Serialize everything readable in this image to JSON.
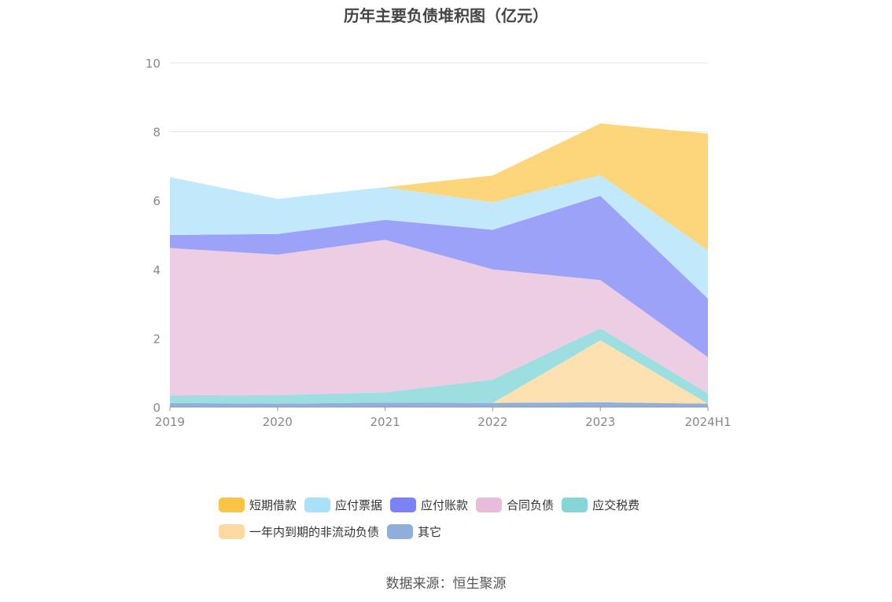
{
  "title": "历年主要负债堆积图（亿元）",
  "source": "数据来源：恒生聚源",
  "chart_data": {
    "type": "area",
    "stacked": true,
    "categories": [
      "2019",
      "2020",
      "2021",
      "2022",
      "2023",
      "2024H1"
    ],
    "ylim": [
      0,
      10
    ],
    "yticks": [
      0,
      2,
      4,
      6,
      8,
      10
    ],
    "xlabel": "",
    "ylabel": "",
    "grid": true,
    "legend_position": "bottom",
    "series": [
      {
        "name": "其它",
        "values": [
          0.12,
          0.1,
          0.13,
          0.12,
          0.14,
          0.1
        ],
        "color": "#8fb0dc"
      },
      {
        "name": "一年内到期的非流动负债",
        "values": [
          0.0,
          0.0,
          0.0,
          0.0,
          1.8,
          0.0
        ],
        "color": "#fde1b1"
      },
      {
        "name": "应交税费",
        "values": [
          0.22,
          0.25,
          0.3,
          0.68,
          0.35,
          0.3
        ],
        "color": "#9ddfe0"
      },
      {
        "name": "合同负债",
        "values": [
          4.28,
          4.08,
          4.43,
          3.2,
          1.4,
          1.05
        ],
        "color": "#edcde4"
      },
      {
        "name": "应付账款",
        "values": [
          0.38,
          0.6,
          0.58,
          1.15,
          2.45,
          1.7
        ],
        "color": "#9ca2f8"
      },
      {
        "name": "应付票据",
        "values": [
          1.68,
          1.02,
          0.95,
          0.8,
          0.6,
          1.4
        ],
        "color": "#c2e8fb"
      },
      {
        "name": "短期借款",
        "values": [
          0.0,
          0.0,
          0.0,
          0.78,
          1.5,
          3.4
        ],
        "color": "#fdd67c"
      }
    ]
  },
  "legend": [
    {
      "label": "短期借款",
      "color": "#fbc444"
    },
    {
      "label": "应付票据",
      "color": "#a9e1fa"
    },
    {
      "label": "应付账款",
      "color": "#7b82f5"
    },
    {
      "label": "合同负债",
      "color": "#e9bcdc"
    },
    {
      "label": "应交税费",
      "color": "#86d6d8"
    },
    {
      "label": "一年内到期的非流动负债",
      "color": "#fed9a0"
    },
    {
      "label": "其它",
      "color": "#8eaedb"
    }
  ]
}
